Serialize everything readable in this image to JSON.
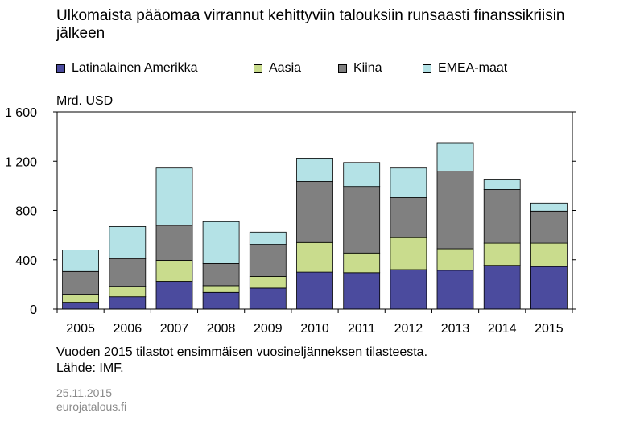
{
  "title": "Ulkomaista pääomaa virrannut kehittyviin talouksiin runsaasti finanssikriisin jälkeen",
  "unit": "Mrd. USD",
  "note": "Vuoden 2015 tilastot ensimmäisen vuosineljänneksen tilasteesta.",
  "source": "Lähde: IMF.",
  "date": "25.11.2015",
  "site": "eurojatalous.fi",
  "chart_data": {
    "type": "bar",
    "stacked": true,
    "title": "Ulkomaista pääomaa virrannut kehittyviin talouksiin runsaasti finanssikriisin jälkeen",
    "ylabel": "Mrd. USD",
    "ylim": [
      0,
      1600
    ],
    "yticks": [
      0,
      400,
      800,
      1200,
      1600
    ],
    "ytick_labels": [
      "0",
      "400",
      "800",
      "1 200",
      "1 600"
    ],
    "grid": false,
    "legend_position": "top",
    "categories": [
      "2005",
      "2006",
      "2007",
      "2008",
      "2009",
      "2010",
      "2011",
      "2012",
      "2013",
      "2014",
      "2015"
    ],
    "series": [
      {
        "name": "Latinalainen Amerikka",
        "color": "#4b4b9e",
        "values": [
          55,
          100,
          225,
          135,
          170,
          300,
          295,
          320,
          315,
          355,
          345
        ]
      },
      {
        "name": "Aasia",
        "color": "#c9dc8d",
        "values": [
          65,
          85,
          170,
          55,
          95,
          240,
          160,
          260,
          175,
          180,
          190
        ]
      },
      {
        "name": "Kiina",
        "color": "#808080",
        "values": [
          185,
          225,
          285,
          180,
          260,
          495,
          540,
          325,
          630,
          435,
          260
        ]
      },
      {
        "name": "EMEA-maat",
        "color": "#b4e2e6",
        "values": [
          175,
          260,
          465,
          340,
          100,
          190,
          195,
          240,
          225,
          85,
          65
        ]
      }
    ]
  }
}
